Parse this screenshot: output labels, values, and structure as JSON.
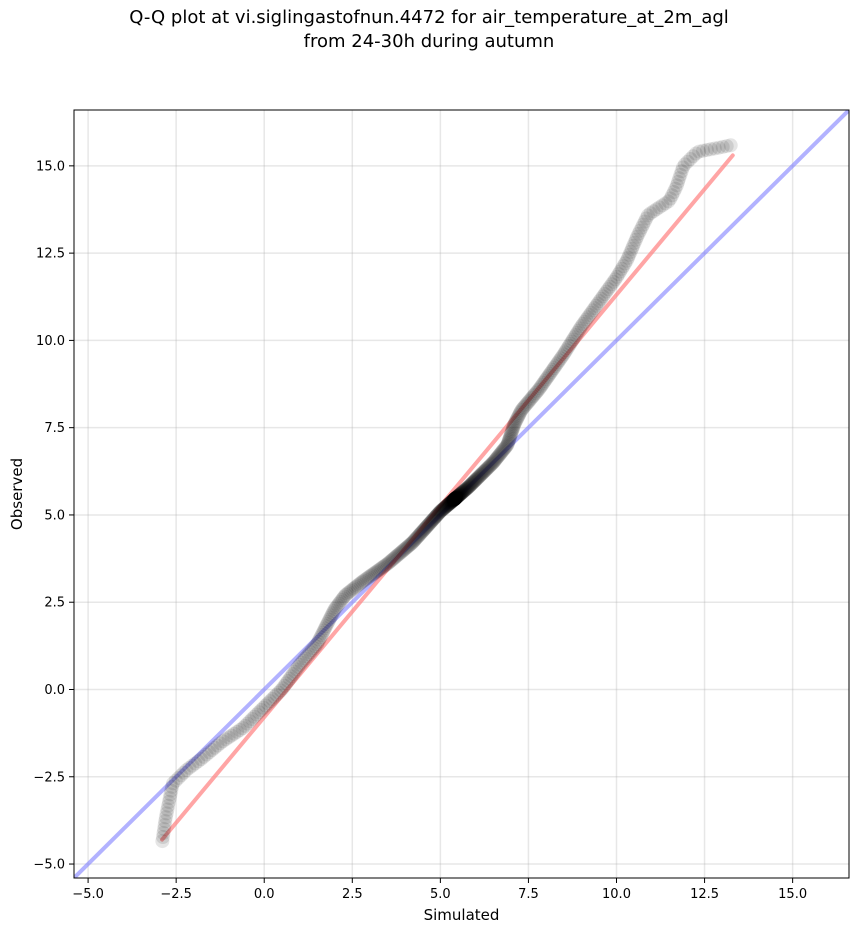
{
  "title": {
    "line1": "Q-Q plot at vi.siglingastofnun.4472 for air_temperature_at_2m_agl",
    "line2": "from 24-30h during autumn"
  },
  "chart_data": {
    "type": "scatter",
    "title": "Q-Q plot at vi.siglingastofnun.4472 for air_temperature_at_2m_agl from 24-30h during autumn",
    "xlabel": "Simulated",
    "ylabel": "Observed",
    "xlim": [
      -5.4,
      16.6
    ],
    "ylim": [
      -5.4,
      16.6
    ],
    "xticks": [
      -5.0,
      -2.5,
      0.0,
      2.5,
      5.0,
      7.5,
      10.0,
      12.5,
      15.0
    ],
    "yticks": [
      -5.0,
      -2.5,
      0.0,
      2.5,
      5.0,
      7.5,
      10.0,
      12.5,
      15.0
    ],
    "xtick_labels": [
      "−5.0",
      "−2.5",
      "0.0",
      "2.5",
      "5.0",
      "7.5",
      "10.0",
      "12.5",
      "15.0"
    ],
    "ytick_labels": [
      "−5.0",
      "−2.5",
      "0.0",
      "2.5",
      "5.0",
      "7.5",
      "10.0",
      "12.5",
      "15.0"
    ],
    "grid": true,
    "quantile_curve": {
      "description_color": "#000000",
      "x": [
        -2.9,
        -2.8,
        -2.6,
        -2.2,
        -1.8,
        -1.2,
        -0.6,
        -0.1,
        0.5,
        1.0,
        1.5,
        1.8,
        2.0,
        2.3,
        2.8,
        3.5,
        4.2,
        5.0,
        5.8,
        6.5,
        6.9,
        7.1,
        7.3,
        7.8,
        8.5,
        9.0,
        9.5,
        10.0,
        10.3,
        10.6,
        10.9,
        11.2,
        11.5,
        11.7,
        11.9,
        12.3,
        13.3
      ],
      "y": [
        -4.4,
        -3.7,
        -2.7,
        -2.3,
        -2.0,
        -1.5,
        -1.1,
        -0.6,
        0.0,
        0.7,
        1.3,
        1.9,
        2.3,
        2.7,
        3.1,
        3.6,
        4.2,
        5.1,
        5.8,
        6.5,
        7.0,
        7.6,
        8.0,
        8.6,
        9.6,
        10.4,
        11.1,
        11.8,
        12.3,
        13.0,
        13.6,
        13.8,
        14.0,
        14.4,
        15.0,
        15.4,
        15.6
      ]
    },
    "fit_line": {
      "color": "#ff7f7f",
      "x": [
        -2.9,
        13.3
      ],
      "y": [
        -4.3,
        15.3
      ]
    },
    "reference_line": {
      "color": "#7f7fff",
      "x": [
        -5.4,
        16.6
      ],
      "y": [
        -5.4,
        16.6
      ]
    },
    "markers": {
      "color": "#000000",
      "opacity": 0.1,
      "n_points": 500
    }
  }
}
